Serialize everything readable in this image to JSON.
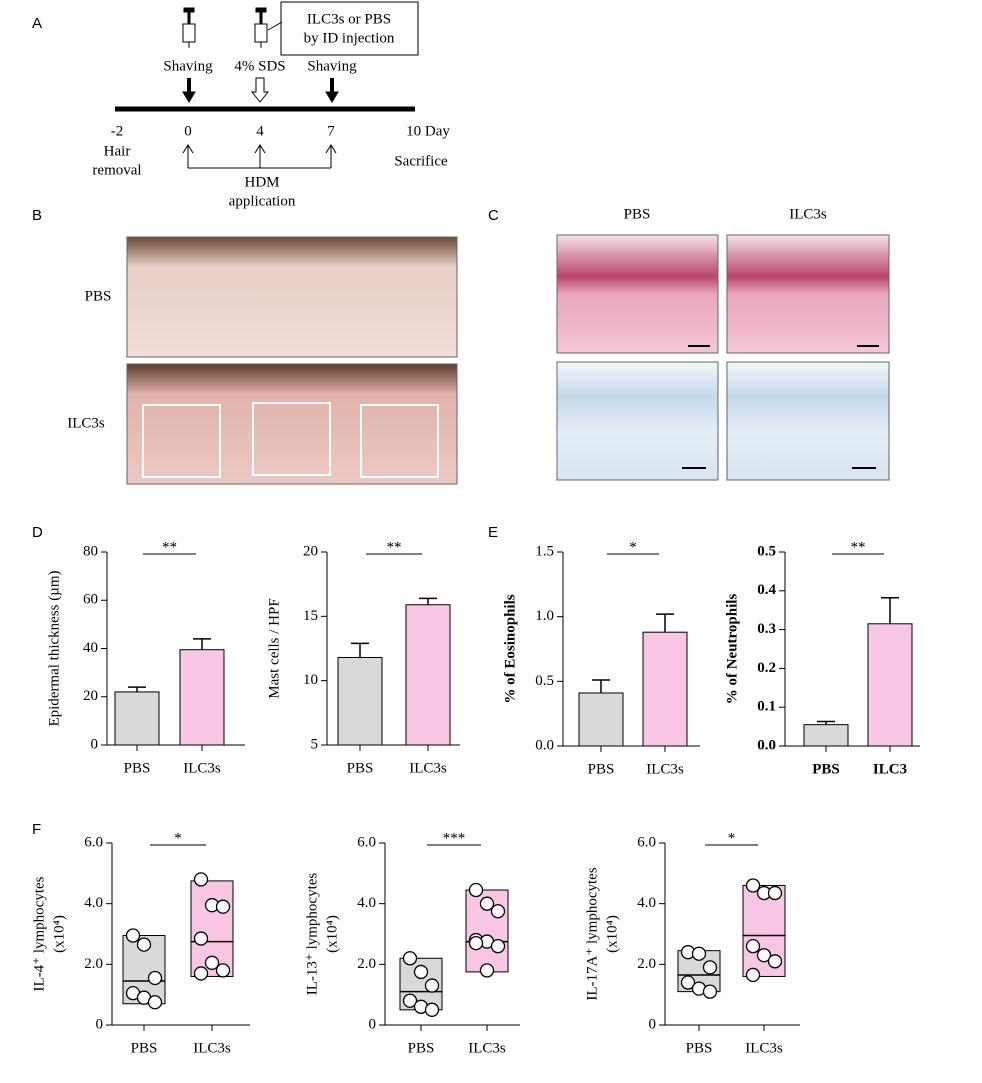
{
  "panel_labels": [
    "A",
    "B",
    "C",
    "D",
    "E",
    "F"
  ],
  "timeline": {
    "injection_note": [
      "ILC3s or PBS",
      "by ID injection"
    ],
    "events": [
      "Shaving",
      "4% SDS",
      "Shaving"
    ],
    "days": [
      "-2",
      "0",
      "4",
      "7",
      "10 Day"
    ],
    "hair_removal": [
      "Hair",
      "removal"
    ],
    "sacrifice": "Sacrifice",
    "application": [
      "HDM",
      "application"
    ]
  },
  "photos": {
    "row_labels": [
      "PBS",
      "ILC3s"
    ],
    "column_labels": [
      "PBS",
      "ILC3s"
    ]
  },
  "chart_data": [
    {
      "type": "bar",
      "ylabel": [
        "Epidermal thickness  (µm)"
      ],
      "categories": [
        "PBS",
        "ILC3s"
      ],
      "values": [
        22,
        39.5
      ],
      "errors": [
        2,
        4.5
      ],
      "colors": [
        "#d9d9d9",
        "#f9c6e4"
      ],
      "ylim": [
        0,
        80
      ],
      "yticks": [
        0,
        20,
        40,
        60,
        80
      ],
      "significance": "**"
    },
    {
      "type": "bar",
      "ylabel": [
        "Mast cells / HPF"
      ],
      "categories": [
        "PBS",
        "ILC3s"
      ],
      "values": [
        11.8,
        15.9
      ],
      "errors": [
        1.1,
        0.5
      ],
      "colors": [
        "#d9d9d9",
        "#f9c6e4"
      ],
      "ylim": [
        5,
        20
      ],
      "yticks": [
        5,
        10,
        15,
        20
      ],
      "significance": "**"
    },
    {
      "type": "bar",
      "ylabel": [
        "% of Eosinophils"
      ],
      "categories": [
        "PBS",
        "ILC3s"
      ],
      "values": [
        0.41,
        0.88
      ],
      "errors": [
        0.1,
        0.14
      ],
      "colors": [
        "#d9d9d9",
        "#f9c6e4"
      ],
      "ylim": [
        0,
        1.5
      ],
      "yticks": [
        {
          "value": 0,
          "label": "0.0"
        },
        0.5,
        {
          "value": 1,
          "label": "1.0"
        },
        1.5
      ],
      "significance": "*"
    },
    {
      "type": "bar",
      "ylabel": [
        "% of Neutrophils"
      ],
      "categories": [
        "PBS",
        "ILC3"
      ],
      "values": [
        0.055,
        0.315
      ],
      "errors": [
        0.008,
        0.067
      ],
      "colors": [
        "#d9d9d9",
        "#f9c6e4"
      ],
      "ylim": [
        0,
        0.5
      ],
      "yticks": [
        {
          "value": 0,
          "label": "0.0"
        },
        0.1,
        0.2,
        0.3,
        0.4,
        0.5
      ],
      "significance": "**"
    },
    {
      "type": "box",
      "ylabel": [
        "IL-4⁺ lymphocytes",
        "(x10⁴)"
      ],
      "categories": [
        "PBS",
        "ILC3s"
      ],
      "boxes": [
        {
          "min": 0.7,
          "median": 1.45,
          "max": 2.95
        },
        {
          "min": 1.6,
          "median": 2.75,
          "max": 4.75
        }
      ],
      "points": [
        [
          2.95,
          2.65,
          1.55,
          1.05,
          0.9,
          0.75
        ],
        [
          4.8,
          3.95,
          3.9,
          2.85,
          2.05,
          1.8,
          1.7
        ]
      ],
      "colors": [
        "#d9d9d9",
        "#f9c6e4"
      ],
      "ylim": [
        0,
        6
      ],
      "yticks": [
        0,
        {
          "value": 2,
          "label": "2.0"
        },
        {
          "value": 4,
          "label": "4.0"
        },
        {
          "value": 6,
          "label": "6.0"
        }
      ],
      "significance": "*"
    },
    {
      "type": "box",
      "ylabel": [
        "IL-13⁺ lymphocytes",
        "(x10⁴)"
      ],
      "categories": [
        "PBS",
        "ILC3s"
      ],
      "boxes": [
        {
          "min": 0.5,
          "median": 1.1,
          "max": 2.2
        },
        {
          "min": 1.75,
          "median": 2.75,
          "max": 4.45
        }
      ],
      "points": [
        [
          2.2,
          1.75,
          1.3,
          0.8,
          0.6,
          0.5
        ],
        [
          4.45,
          4.0,
          3.75,
          2.8,
          2.75,
          2.6,
          2.7,
          1.8
        ]
      ],
      "colors": [
        "#d9d9d9",
        "#f9c6e4"
      ],
      "ylim": [
        0,
        6
      ],
      "yticks": [
        0,
        {
          "value": 2,
          "label": "2.0"
        },
        {
          "value": 4,
          "label": "4.0"
        },
        {
          "value": 6,
          "label": "6.0"
        }
      ],
      "significance": "***"
    },
    {
      "type": "box",
      "ylabel": [
        "IL-17A⁺ lymphocytes",
        "(x10⁴)"
      ],
      "categories": [
        "PBS",
        "ILC3s"
      ],
      "boxes": [
        {
          "min": 1.1,
          "median": 1.65,
          "max": 2.45
        },
        {
          "min": 1.6,
          "median": 2.95,
          "max": 4.6
        }
      ],
      "points": [
        [
          2.4,
          2.35,
          1.9,
          1.4,
          1.2,
          1.1
        ],
        [
          4.6,
          4.35,
          4.35,
          2.6,
          2.3,
          2.1,
          1.65
        ]
      ],
      "colors": [
        "#d9d9d9",
        "#f9c6e4"
      ],
      "ylim": [
        0,
        6
      ],
      "yticks": [
        0,
        {
          "value": 2,
          "label": "2.0"
        },
        {
          "value": 4,
          "label": "4.0"
        },
        {
          "value": 6,
          "label": "6.0"
        }
      ],
      "significance": "*"
    }
  ]
}
